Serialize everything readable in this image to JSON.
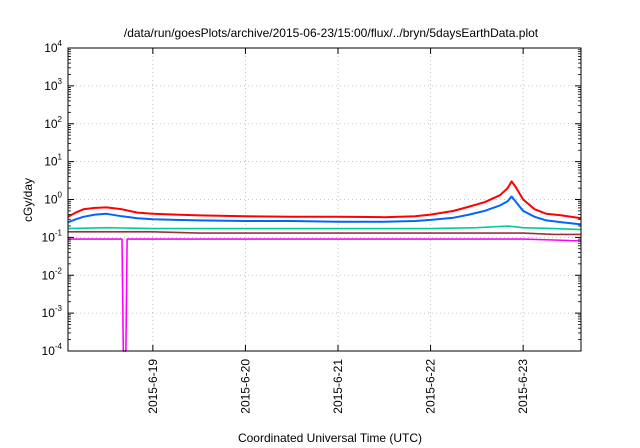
{
  "chart_data": {
    "type": "line",
    "title": "/data/run/goesPlots/archive/2015-06-23/15:00/flux/../bryn/5daysEarthData.plot",
    "xlabel": "Coordinated Universal Time (UTC)",
    "ylabel": "cGy/day",
    "yscale": "log",
    "grid": true,
    "legend": "none",
    "x_range": [
      "2015-06-18T02:00",
      "2015-06-23T15:00"
    ],
    "ylim": [
      0.0001,
      10000
    ],
    "x_ticks": [
      "2015-6-19",
      "2015-6-20",
      "2015-6-21",
      "2015-6-22",
      "2015-6-23"
    ],
    "y_ticks": [
      {
        "base": "10",
        "exp": "4"
      },
      {
        "base": "10",
        "exp": "3"
      },
      {
        "base": "10",
        "exp": "2"
      },
      {
        "base": "10",
        "exp": "1"
      },
      {
        "base": "10",
        "exp": "0"
      },
      {
        "base": "10",
        "exp": "-1"
      },
      {
        "base": "10",
        "exp": "-2"
      },
      {
        "base": "10",
        "exp": "-3"
      },
      {
        "base": "10",
        "exp": "-4"
      }
    ],
    "series": [
      {
        "color": "#ff0000",
        "x": [
          "2015-06-18T02:00",
          "2015-06-18T04:00",
          "2015-06-18T06:00",
          "2015-06-18T09:00",
          "2015-06-18T12:00",
          "2015-06-18T16:00",
          "2015-06-18T20:00",
          "2015-06-19T00:00",
          "2015-06-19T06:00",
          "2015-06-19T12:00",
          "2015-06-20T00:00",
          "2015-06-20T12:00",
          "2015-06-21T00:00",
          "2015-06-21T12:00",
          "2015-06-21T20:00",
          "2015-06-22T00:00",
          "2015-06-22T06:00",
          "2015-06-22T10:00",
          "2015-06-22T14:00",
          "2015-06-22T18:00",
          "2015-06-22T20:00",
          "2015-06-22T21:00",
          "2015-06-22T22:00",
          "2015-06-23T00:00",
          "2015-06-23T03:00",
          "2015-06-23T06:00",
          "2015-06-23T10:00",
          "2015-06-23T15:00"
        ],
        "y": [
          0.35,
          0.45,
          0.55,
          0.6,
          0.62,
          0.55,
          0.45,
          0.42,
          0.4,
          0.38,
          0.36,
          0.35,
          0.35,
          0.34,
          0.36,
          0.4,
          0.5,
          0.65,
          0.85,
          1.3,
          2.0,
          3.0,
          2.2,
          1.0,
          0.55,
          0.42,
          0.38,
          0.32
        ]
      },
      {
        "color": "#0066ff",
        "x": [
          "2015-06-18T02:00",
          "2015-06-18T04:00",
          "2015-06-18T06:00",
          "2015-06-18T09:00",
          "2015-06-18T12:00",
          "2015-06-18T16:00",
          "2015-06-18T20:00",
          "2015-06-19T00:00",
          "2015-06-19T06:00",
          "2015-06-19T12:00",
          "2015-06-20T00:00",
          "2015-06-20T12:00",
          "2015-06-21T00:00",
          "2015-06-21T12:00",
          "2015-06-21T20:00",
          "2015-06-22T00:00",
          "2015-06-22T06:00",
          "2015-06-22T10:00",
          "2015-06-22T14:00",
          "2015-06-22T18:00",
          "2015-06-22T20:00",
          "2015-06-22T21:00",
          "2015-06-22T22:00",
          "2015-06-23T00:00",
          "2015-06-23T03:00",
          "2015-06-23T06:00",
          "2015-06-23T10:00",
          "2015-06-23T15:00"
        ],
        "y": [
          0.25,
          0.3,
          0.35,
          0.4,
          0.42,
          0.36,
          0.32,
          0.3,
          0.29,
          0.28,
          0.27,
          0.27,
          0.26,
          0.26,
          0.27,
          0.29,
          0.33,
          0.4,
          0.5,
          0.7,
          0.9,
          1.2,
          0.9,
          0.5,
          0.35,
          0.28,
          0.25,
          0.22
        ]
      },
      {
        "color": "#00cc99",
        "x": [
          "2015-06-18T02:00",
          "2015-06-18T12:00",
          "2015-06-19T00:00",
          "2015-06-19T12:00",
          "2015-06-20T00:00",
          "2015-06-20T12:00",
          "2015-06-21T00:00",
          "2015-06-21T12:00",
          "2015-06-22T00:00",
          "2015-06-22T12:00",
          "2015-06-22T20:00",
          "2015-06-23T00:00",
          "2015-06-23T08:00",
          "2015-06-23T15:00"
        ],
        "y": [
          0.17,
          0.18,
          0.17,
          0.17,
          0.17,
          0.17,
          0.17,
          0.17,
          0.17,
          0.18,
          0.2,
          0.18,
          0.17,
          0.16
        ]
      },
      {
        "color": "#993333",
        "x": [
          "2015-06-18T02:00",
          "2015-06-18T12:00",
          "2015-06-19T00:00",
          "2015-06-19T12:00",
          "2015-06-20T00:00",
          "2015-06-20T12:00",
          "2015-06-21T00:00",
          "2015-06-21T12:00",
          "2015-06-22T00:00",
          "2015-06-22T12:00",
          "2015-06-23T00:00",
          "2015-06-23T08:00",
          "2015-06-23T15:00"
        ],
        "y": [
          0.14,
          0.14,
          0.14,
          0.13,
          0.13,
          0.13,
          0.13,
          0.13,
          0.13,
          0.13,
          0.13,
          0.12,
          0.12
        ]
      },
      {
        "color": "#ff00ff",
        "x": [
          "2015-06-18T02:00",
          "2015-06-18T12:00",
          "2015-06-18T16:00",
          "2015-06-18T16:20",
          "2015-06-18T17:00",
          "2015-06-18T17:20",
          "2015-06-18T20:00",
          "2015-06-19T00:00",
          "2015-06-19T12:00",
          "2015-06-20T00:00",
          "2015-06-20T12:00",
          "2015-06-21T00:00",
          "2015-06-21T12:00",
          "2015-06-22T00:00",
          "2015-06-22T12:00",
          "2015-06-23T00:00",
          "2015-06-23T08:00",
          "2015-06-23T15:00"
        ],
        "y": [
          0.09,
          0.09,
          0.09,
          0.0001,
          0.0001,
          0.09,
          0.09,
          0.09,
          0.09,
          0.09,
          0.09,
          0.09,
          0.09,
          0.09,
          0.09,
          0.09,
          0.085,
          0.08
        ]
      }
    ]
  }
}
